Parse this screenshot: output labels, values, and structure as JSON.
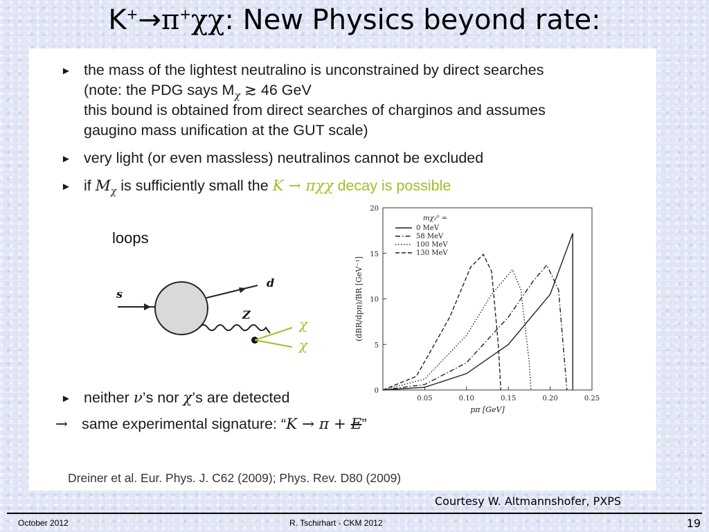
{
  "title": {
    "k": "K",
    "kplus": "+",
    "arrow": "→",
    "pi": "π",
    "piplus": "+",
    "chichi": "χχ",
    "rest": ": New Physics beyond rate:"
  },
  "bullets": [
    {
      "mark": "►",
      "lines": [
        "the mass of the lightest neutralino is unconstrained by direct searches",
        "(note: the PDG says M",
        "this bound is obtained from direct searches of charginos and assumes",
        "gaugino mass unification at the GUT scale)"
      ],
      "pdg_tail": " ≳ 46 GeV",
      "sub_chi": "χ"
    },
    {
      "mark": "►",
      "text": "very light (or even massless) neutralinos cannot be excluded"
    },
    {
      "mark": "►",
      "pre": "if ",
      "m": "M",
      "chi": "χ",
      "mid": " is sufficiently small the ",
      "k": "K",
      "arrow": " → ",
      "pichichi": "πχχ",
      "post": " decay is possible"
    },
    {
      "mark": "►",
      "pre": "neither ",
      "nu": "ν",
      "mid": "’s nor ",
      "chi": "χ",
      "post": "’s are detected"
    }
  ],
  "signature": {
    "arrow": "→",
    "pre": "same experimental signature: “",
    "k": "K",
    "mid": " → π + ",
    "e": "E",
    "post": "”"
  },
  "reference": "Dreiner et al. Eur. Phys. J. C62 (2009); Phys. Rev. D80 (2009)",
  "diagram": {
    "loops": "loops",
    "s": "s",
    "d": "d",
    "z": "Z",
    "chi1": "χ",
    "chi2": "χ"
  },
  "chart_data": {
    "type": "line",
    "xlabel": "pπ [GeV]",
    "ylabel": "(dBR/dpπ)/BR [GeV⁻¹]",
    "xlim": [
      0,
      0.25
    ],
    "ylim": [
      0,
      20
    ],
    "xticks": [
      "0.05",
      "0.10",
      "0.15",
      "0.20",
      "0.25"
    ],
    "yticks": [
      "0",
      "5",
      "10",
      "15",
      "20"
    ],
    "legend_title": "mχ₁⁰ =",
    "legend_position": "top-left",
    "series": [
      {
        "name": "0 MeV",
        "style": "solid",
        "x": [
          0.0,
          0.05,
          0.1,
          0.15,
          0.2,
          0.227,
          0.227
        ],
        "y": [
          0.0,
          0.3,
          1.8,
          5.0,
          10.5,
          17.2,
          0.0
        ]
      },
      {
        "name": "58 MeV",
        "style": "dashdot",
        "x": [
          0.0,
          0.05,
          0.1,
          0.15,
          0.18,
          0.196,
          0.21,
          0.22
        ],
        "y": [
          0.0,
          0.6,
          3.0,
          8.0,
          12.0,
          13.7,
          11.0,
          0.0
        ]
      },
      {
        "name": "100 MeV",
        "style": "dotted",
        "x": [
          0.0,
          0.05,
          0.1,
          0.13,
          0.155,
          0.165,
          0.175,
          0.177
        ],
        "y": [
          0.0,
          1.2,
          6.0,
          10.5,
          13.2,
          11.0,
          3.0,
          0.0
        ]
      },
      {
        "name": "130 MeV",
        "style": "dashed",
        "x": [
          0.0,
          0.04,
          0.08,
          0.105,
          0.12,
          0.13,
          0.138,
          0.141
        ],
        "y": [
          0.0,
          1.5,
          8.0,
          13.5,
          14.9,
          13.0,
          5.0,
          0.0
        ]
      }
    ]
  },
  "courtesy": "Courtesy W. Altmannshofer, PXPS",
  "footer": {
    "date": "October 2012",
    "center": "R. Tschirhart -  CKM 2012",
    "page": "19"
  }
}
